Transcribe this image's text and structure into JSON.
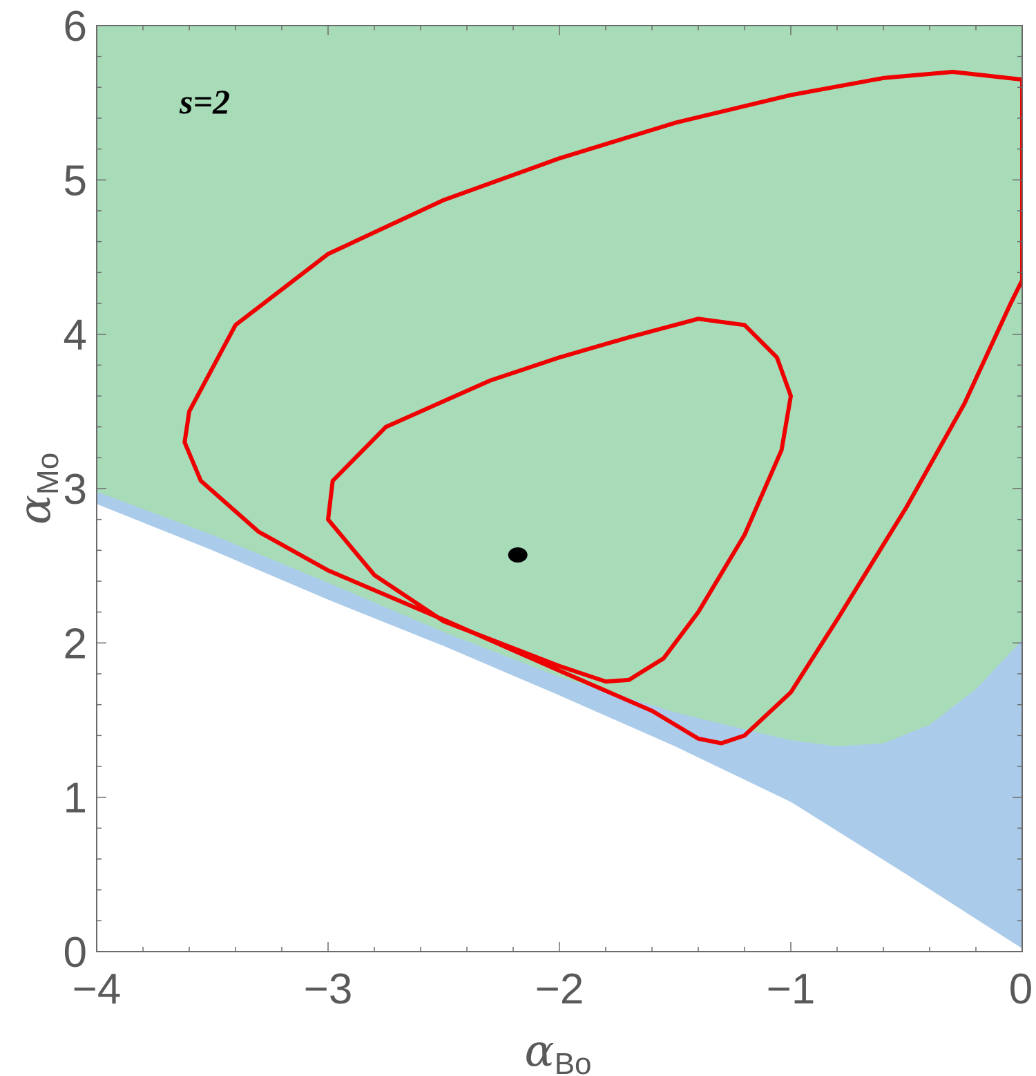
{
  "chart_data": {
    "type": "area",
    "xlabel": {
      "main": "α",
      "sub": "Bo"
    },
    "ylabel": {
      "main": "α",
      "sub": "Mo"
    },
    "xlim": [
      -4,
      0
    ],
    "ylim": [
      0,
      6
    ],
    "xticks": [
      {
        "value": -4,
        "label": "−4"
      },
      {
        "value": -3,
        "label": "−3"
      },
      {
        "value": -2,
        "label": "−2"
      },
      {
        "value": -1,
        "label": "−1"
      },
      {
        "value": 0,
        "label": "0"
      }
    ],
    "yticks": [
      {
        "value": 0,
        "label": "0"
      },
      {
        "value": 1,
        "label": "1"
      },
      {
        "value": 2,
        "label": "2"
      },
      {
        "value": 3,
        "label": "3"
      },
      {
        "value": 4,
        "label": "4"
      },
      {
        "value": 5,
        "label": "5"
      },
      {
        "value": 6,
        "label": "6"
      }
    ],
    "minor_step": 0.2,
    "grid": false,
    "annotation": "s=2",
    "colors": {
      "green_region": "#a8dcb9",
      "blue_region": "#abcbea",
      "contour": "#ee0000",
      "point": "#000000",
      "frame": "#6b6b6b",
      "text": "#595959"
    },
    "blue_lower_boundary": [
      [
        -4,
        2.9
      ],
      [
        -3.5,
        2.6
      ],
      [
        -3,
        2.28
      ],
      [
        -2.5,
        1.98
      ],
      [
        -2,
        1.66
      ],
      [
        -1.5,
        1.33
      ],
      [
        -1,
        0.97
      ],
      [
        -0.5,
        0.5
      ],
      [
        0,
        0.02
      ]
    ],
    "green_lower_boundary": [
      [
        -4,
        2.98
      ],
      [
        -3.5,
        2.7
      ],
      [
        -3,
        2.39
      ],
      [
        -2.5,
        2.07
      ],
      [
        -2,
        1.78
      ],
      [
        -1.5,
        1.55
      ],
      [
        -1.2,
        1.44
      ],
      [
        -1,
        1.37
      ],
      [
        -0.8,
        1.33
      ],
      [
        -0.6,
        1.35
      ],
      [
        -0.4,
        1.47
      ],
      [
        -0.2,
        1.7
      ],
      [
        0,
        2.02
      ]
    ],
    "contours": [
      {
        "name": "outer",
        "points": [
          [
            0,
            5.65
          ],
          [
            -0.3,
            5.7
          ],
          [
            -0.6,
            5.66
          ],
          [
            -1,
            5.55
          ],
          [
            -1.5,
            5.37
          ],
          [
            -2,
            5.14
          ],
          [
            -2.5,
            4.87
          ],
          [
            -3,
            4.52
          ],
          [
            -3.4,
            4.06
          ],
          [
            -3.6,
            3.5
          ],
          [
            -3.62,
            3.3
          ],
          [
            -3.55,
            3.05
          ],
          [
            -3.3,
            2.72
          ],
          [
            -3,
            2.47
          ],
          [
            -2.5,
            2.15
          ],
          [
            -2,
            1.82
          ],
          [
            -1.6,
            1.56
          ],
          [
            -1.4,
            1.38
          ],
          [
            -1.3,
            1.35
          ],
          [
            -1.2,
            1.4
          ],
          [
            -1,
            1.68
          ],
          [
            -0.8,
            2.15
          ],
          [
            -0.5,
            2.88
          ],
          [
            -0.25,
            3.55
          ],
          [
            -0.05,
            4.2
          ],
          [
            0,
            4.35
          ],
          [
            0,
            5.65
          ]
        ]
      },
      {
        "name": "inner",
        "points": [
          [
            -1.4,
            4.1
          ],
          [
            -1.2,
            4.06
          ],
          [
            -1.06,
            3.85
          ],
          [
            -1.0,
            3.6
          ],
          [
            -1.04,
            3.25
          ],
          [
            -1.2,
            2.7
          ],
          [
            -1.4,
            2.2
          ],
          [
            -1.55,
            1.9
          ],
          [
            -1.7,
            1.76
          ],
          [
            -1.8,
            1.75
          ],
          [
            -2,
            1.85
          ],
          [
            -2.5,
            2.14
          ],
          [
            -2.8,
            2.44
          ],
          [
            -3.0,
            2.8
          ],
          [
            -2.98,
            3.05
          ],
          [
            -2.75,
            3.4
          ],
          [
            -2.3,
            3.7
          ],
          [
            -2,
            3.85
          ],
          [
            -1.7,
            3.98
          ],
          [
            -1.4,
            4.1
          ]
        ]
      }
    ],
    "point": {
      "x": -2.18,
      "y": 2.57
    }
  }
}
